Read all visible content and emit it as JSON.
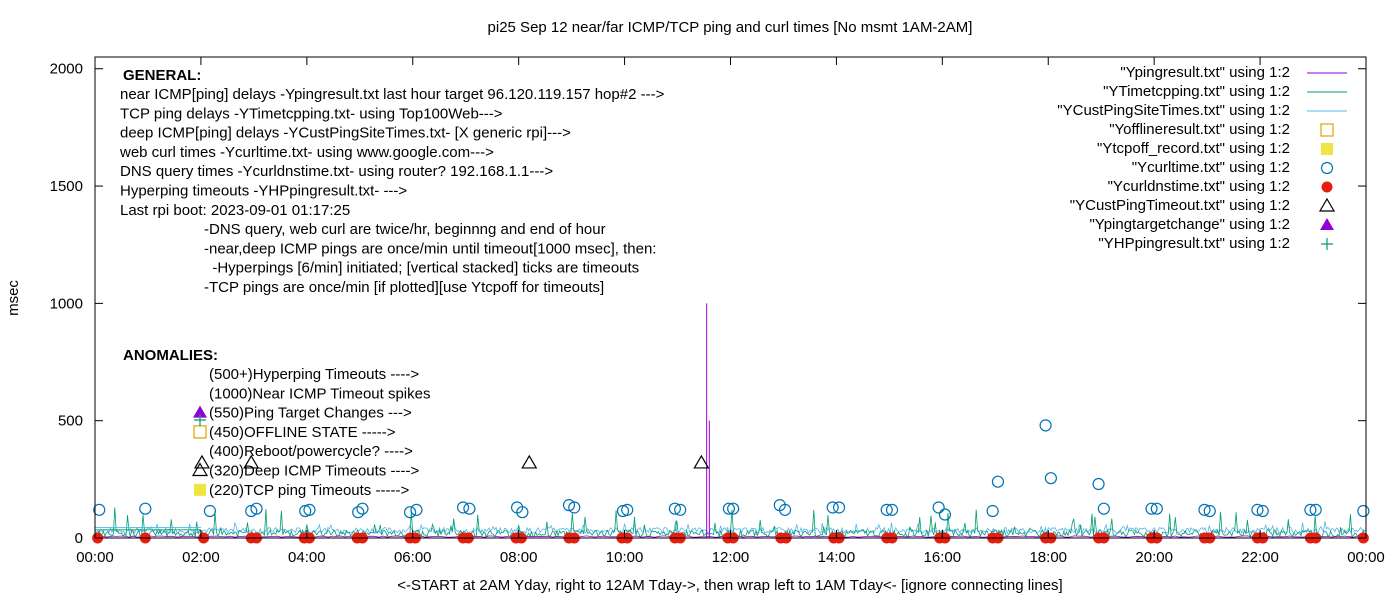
{
  "chart_data": {
    "type": "line",
    "title": "pi25 Sep 12  near/far ICMP/TCP ping and curl times [No msmt 1AM-2AM]",
    "xlabel": "<-START at 2AM Yday, right to 12AM Tday->, then wrap left to 1AM Tday<- [ignore connecting lines]",
    "ylabel": "msec",
    "xlim": [
      0,
      24
    ],
    "ylim": [
      0,
      2050
    ],
    "x_ticks": [
      {
        "value": 0,
        "label": "00:00"
      },
      {
        "value": 2,
        "label": "02:00"
      },
      {
        "value": 4,
        "label": "04:00"
      },
      {
        "value": 6,
        "label": "06:00"
      },
      {
        "value": 8,
        "label": "08:00"
      },
      {
        "value": 10,
        "label": "10:00"
      },
      {
        "value": 12,
        "label": "12:00"
      },
      {
        "value": 14,
        "label": "14:00"
      },
      {
        "value": 16,
        "label": "16:00"
      },
      {
        "value": 18,
        "label": "18:00"
      },
      {
        "value": 20,
        "label": "20:00"
      },
      {
        "value": 22,
        "label": "22:00"
      },
      {
        "value": 24,
        "label": "00:00"
      }
    ],
    "y_ticks": [
      {
        "value": 0,
        "label": "0"
      },
      {
        "value": 500,
        "label": "500"
      },
      {
        "value": 1000,
        "label": "1000"
      },
      {
        "value": 1500,
        "label": "1500"
      },
      {
        "value": 2000,
        "label": "2000"
      }
    ],
    "legend_position": "top-right",
    "legend": [
      {
        "label": "\"Ypingresult.txt\" using 1:2",
        "kind": "line",
        "color": "#9400d3"
      },
      {
        "label": "\"YTimetcpping.txt\" using 1:2",
        "kind": "line",
        "color": "#009e73"
      },
      {
        "label": "\"YCustPingSiteTimes.txt\" using 1:2",
        "kind": "line",
        "color": "#56b4e9"
      },
      {
        "label": "\"Yofflineresult.txt\" using 1:2",
        "kind": "open-square",
        "color": "#e69f00"
      },
      {
        "label": "\"Ytcpoff_record.txt\" using 1:2",
        "kind": "filled-square",
        "color": "#f0e442"
      },
      {
        "label": "\"Ycurltime.txt\" using 1:2",
        "kind": "open-circle",
        "color": "#0072b2"
      },
      {
        "label": "\"Ycurldnstime.txt\" using 1:2",
        "kind": "filled-circle",
        "color": "#e51e10"
      },
      {
        "label": "\"YCustPingTimeout.txt\" using 1:2",
        "kind": "open-triangle",
        "color": "#000000"
      },
      {
        "label": "\"Ypingtargetchange\" using 1:2",
        "kind": "filled-triangle",
        "color": "#9400d3"
      },
      {
        "label": "\"YHPpingresult.txt\" using 1:2",
        "kind": "plus",
        "color": "#009e73"
      }
    ],
    "annotations": {
      "general_heading": "GENERAL:",
      "general_lines": [
        "near ICMP[ping] delays -Ypingresult.txt last hour target 96.120.119.157 hop#2 --->",
        "TCP ping delays -YTimetcpping.txt- using Top100Web--->",
        "deep ICMP[ping] delays -YCustPingSiteTimes.txt- [X generic rpi]--->",
        "web curl times -Ycurltime.txt- using www.google.com--->",
        "DNS query times -Ycurldnstime.txt- using router? 192.168.1.1--->",
        "Hyperping timeouts -YHPpingresult.txt- --->",
        "Last rpi boot: 2023-09-01 01:17:25"
      ],
      "notes": [
        "-DNS query, web curl are twice/hr, beginnng and end of hour",
        "-near,deep ICMP pings are once/min until timeout[1000 msec], then:",
        "  -Hyperpings [6/min] initiated; [vertical stacked] ticks are timeouts",
        "-TCP pings are once/min [if plotted][use Ytcpoff for timeouts]"
      ],
      "anomalies_heading": "ANOMALIES:",
      "anomalies": [
        {
          "label": "(500+)Hyperping Timeouts ---->",
          "marker": "none"
        },
        {
          "label": "(1000)Near ICMP Timeout spikes",
          "marker": "none"
        },
        {
          "label": "(550)Ping Target Changes --->",
          "marker": "filled-triangle"
        },
        {
          "label": "(450)OFFLINE STATE ----->",
          "marker": "open-square"
        },
        {
          "label": "(400)Reboot/powercycle? ---->",
          "marker": "none"
        },
        {
          "label": "(320)Deep ICMP Timeouts ---->",
          "marker": "open-triangle"
        },
        {
          "label": "(220)TCP ping Timeouts ----->",
          "marker": "filled-square"
        }
      ]
    },
    "series": {
      "near_icmp_spike": {
        "x": 11.55,
        "y": 1000
      },
      "near_icmp_spike2": {
        "x": 11.6,
        "y": 500
      },
      "curl_times": {
        "x": [
          0.08,
          0.95,
          2.17,
          2.95,
          3.05,
          3.97,
          4.05,
          4.97,
          5.05,
          5.95,
          6.07,
          6.95,
          7.07,
          7.97,
          8.07,
          8.95,
          9.05,
          9.97,
          10.05,
          10.95,
          11.05,
          11.97,
          12.05,
          12.93,
          13.03,
          13.93,
          14.05,
          14.95,
          15.05,
          15.93,
          16.05,
          16.95,
          17.05,
          17.95,
          18.05,
          18.95,
          19.05,
          19.95,
          20.05,
          20.95,
          21.05,
          21.95,
          22.05,
          22.95,
          23.05,
          23.95
        ],
        "y": [
          120,
          125,
          115,
          115,
          125,
          115,
          120,
          110,
          125,
          110,
          120,
          130,
          125,
          130,
          110,
          140,
          130,
          115,
          120,
          125,
          120,
          125,
          125,
          140,
          120,
          130,
          130,
          120,
          120,
          130,
          100,
          115,
          240,
          480,
          255,
          230,
          125,
          125,
          125,
          120,
          115,
          120,
          115,
          120,
          120,
          115
        ]
      },
      "dns_times": {
        "x": [
          0.05,
          0.95,
          2.05,
          2.95,
          3.05,
          3.95,
          4.05,
          4.95,
          5.05,
          5.95,
          6.05,
          6.95,
          7.05,
          7.95,
          8.05,
          8.95,
          9.05,
          9.95,
          10.05,
          10.95,
          11.05,
          11.95,
          12.05,
          12.95,
          13.05,
          13.95,
          14.05,
          14.95,
          15.05,
          15.95,
          16.05,
          16.95,
          17.05,
          17.95,
          18.05,
          18.95,
          19.05,
          19.95,
          20.05,
          20.95,
          21.05,
          21.95,
          22.05,
          22.95,
          23.05,
          23.95
        ],
        "y": [
          0,
          0,
          0,
          0,
          0,
          0,
          0,
          0,
          0,
          0,
          0,
          0,
          0,
          0,
          0,
          0,
          0,
          0,
          0,
          0,
          0,
          0,
          0,
          0,
          0,
          0,
          0,
          0,
          0,
          0,
          0,
          0,
          0,
          0,
          0,
          0,
          0,
          0,
          0,
          0,
          0,
          0,
          0,
          0,
          0,
          0
        ]
      },
      "deep_icmp_timeouts": {
        "x": [
          2.02,
          2.95,
          8.2,
          11.45
        ],
        "y": [
          320,
          320,
          320,
          320
        ]
      }
    }
  }
}
